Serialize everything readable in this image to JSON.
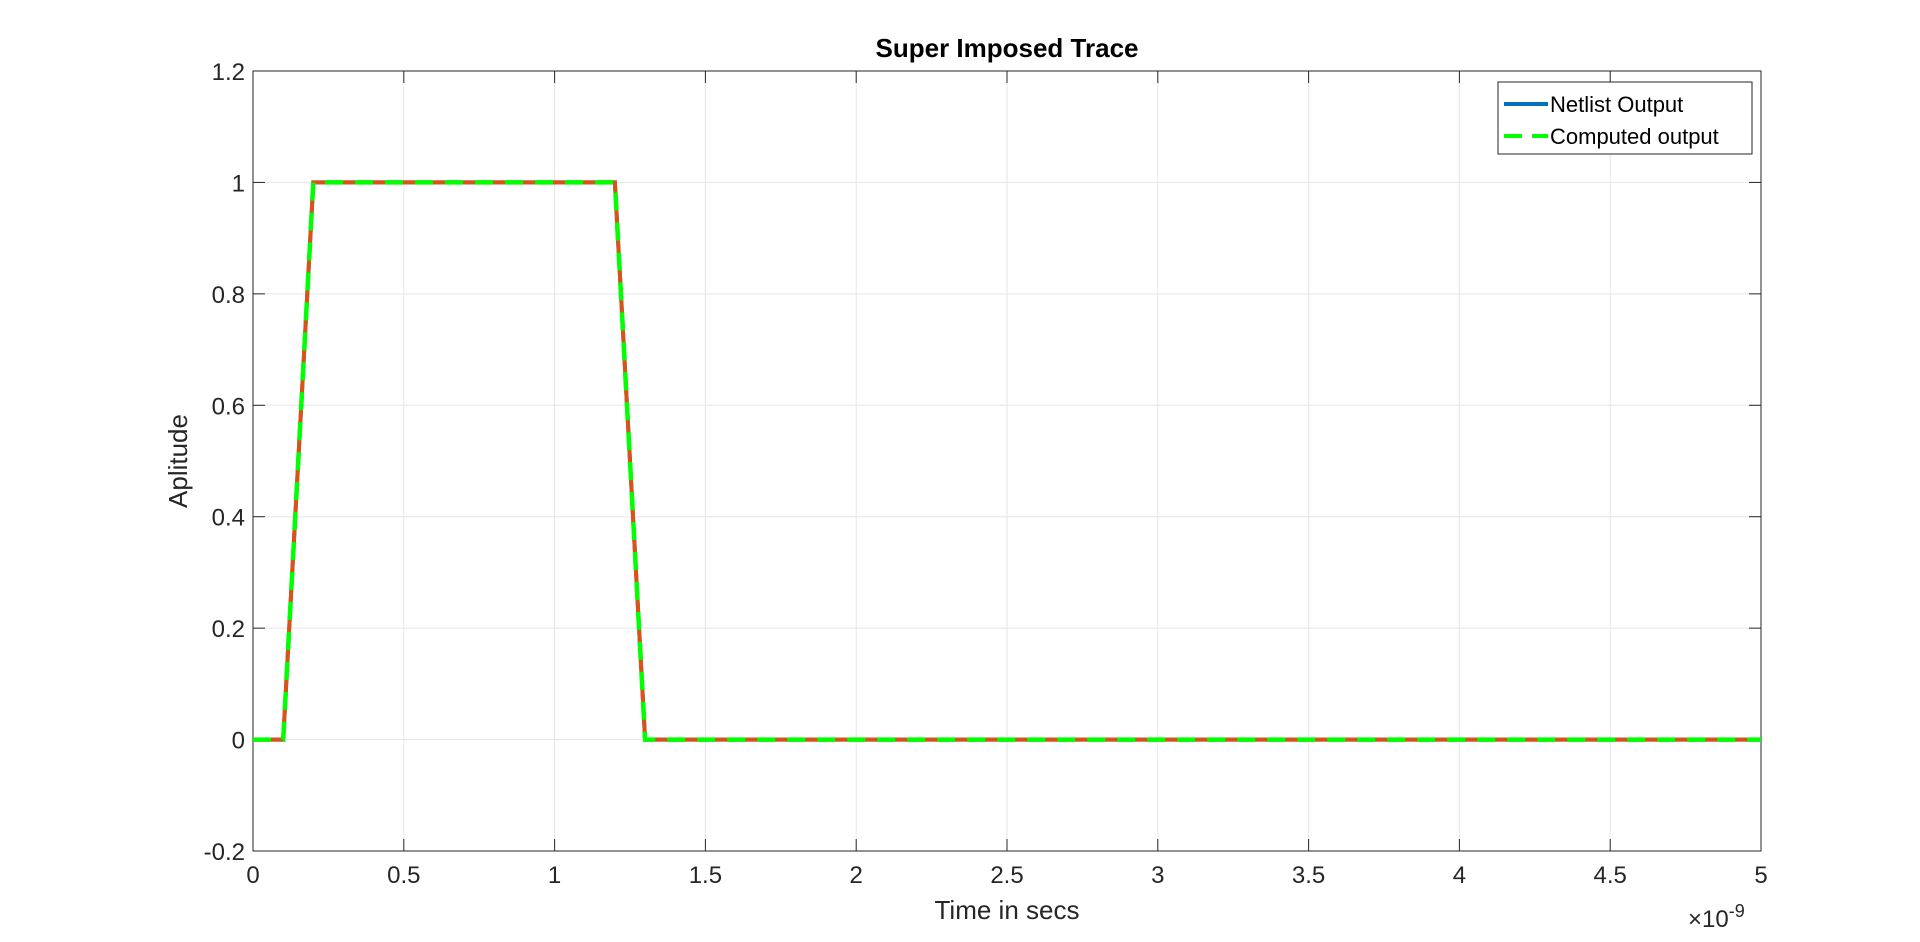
{
  "chart_data": {
    "type": "line",
    "title": "Super Imposed Trace",
    "xlabel": "Time in secs",
    "ylabel": "Aplitude",
    "x_exponent_label": "×10",
    "x_exponent_power": "-9",
    "xlim": [
      0,
      5
    ],
    "ylim": [
      -0.2,
      1.2
    ],
    "x_ticks": [
      0,
      0.5,
      1,
      1.5,
      2,
      2.5,
      3,
      3.5,
      4,
      4.5,
      5
    ],
    "x_tick_labels": [
      "0",
      "0.5",
      "1",
      "1.5",
      "2",
      "2.5",
      "3",
      "3.5",
      "4",
      "4.5",
      "5"
    ],
    "y_ticks": [
      -0.2,
      0,
      0.2,
      0.4,
      0.6,
      0.8,
      1,
      1.2
    ],
    "y_tick_labels": [
      "-0.2",
      "0",
      "0.2",
      "0.4",
      "0.6",
      "0.8",
      "1",
      "1.2"
    ],
    "grid": true,
    "legend_position": "top-right",
    "series": [
      {
        "name": "Netlist Output",
        "color": "#0072BD",
        "style": "solid",
        "x": [
          0,
          0.1,
          0.2,
          1.2,
          1.3,
          5
        ],
        "y": [
          0,
          0,
          1,
          1,
          0,
          0
        ]
      },
      {
        "name": "Computed output",
        "color": "#00FF00",
        "style": "dashed",
        "x": [
          0,
          0.1,
          0.2,
          1.2,
          1.3,
          5
        ],
        "y": [
          0,
          0,
          1,
          1,
          0,
          0
        ]
      },
      {
        "name": "",
        "color": "#D95319",
        "style": "solid",
        "x": [
          0,
          0.1,
          0.2,
          1.2,
          1.3,
          5
        ],
        "y": [
          0,
          0,
          1,
          1,
          0,
          0
        ]
      }
    ]
  }
}
